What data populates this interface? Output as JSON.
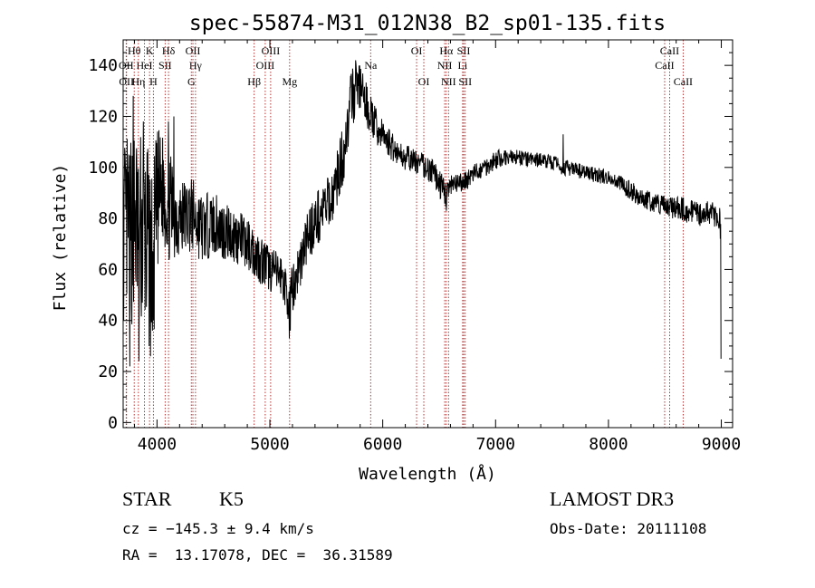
{
  "chart_data": {
    "type": "line",
    "title": "spec-55874-M31_012N38_B2_sp01-135.fits",
    "xlabel": "Wavelength (Å)",
    "ylabel": "Flux (relative)",
    "xlim": [
      3700,
      9100
    ],
    "ylim": [
      -2,
      150
    ],
    "xticks": [
      4000,
      5000,
      6000,
      7000,
      8000,
      9000
    ],
    "xtick_labels": [
      "4000",
      "5000",
      "6000",
      "7000",
      "8000",
      "9000"
    ],
    "yticks": [
      0,
      20,
      40,
      60,
      80,
      100,
      120,
      140
    ],
    "ytick_labels": [
      "0",
      "20",
      "40",
      "60",
      "80",
      "100",
      "120",
      "140"
    ],
    "color_line": "#000000",
    "color_marker": "#b22222",
    "spectrum_envelope": [
      {
        "x": 3710,
        "y": 75,
        "amp": 35
      },
      {
        "x": 3800,
        "y": 78,
        "amp": 40
      },
      {
        "x": 3900,
        "y": 72,
        "amp": 40
      },
      {
        "x": 3960,
        "y": 60,
        "amp": 38
      },
      {
        "x": 4000,
        "y": 85,
        "amp": 30
      },
      {
        "x": 4050,
        "y": 92,
        "amp": 22
      },
      {
        "x": 4100,
        "y": 85,
        "amp": 22
      },
      {
        "x": 4200,
        "y": 80,
        "amp": 16
      },
      {
        "x": 4300,
        "y": 82,
        "amp": 15
      },
      {
        "x": 4400,
        "y": 76,
        "amp": 14
      },
      {
        "x": 4500,
        "y": 78,
        "amp": 12
      },
      {
        "x": 4600,
        "y": 75,
        "amp": 12
      },
      {
        "x": 4700,
        "y": 73,
        "amp": 11
      },
      {
        "x": 4800,
        "y": 70,
        "amp": 10
      },
      {
        "x": 4900,
        "y": 65,
        "amp": 10
      },
      {
        "x": 5000,
        "y": 60,
        "amp": 9
      },
      {
        "x": 5100,
        "y": 58,
        "amp": 8
      },
      {
        "x": 5170,
        "y": 48,
        "amp": 9
      },
      {
        "x": 5250,
        "y": 60,
        "amp": 10
      },
      {
        "x": 5350,
        "y": 75,
        "amp": 11
      },
      {
        "x": 5450,
        "y": 82,
        "amp": 11
      },
      {
        "x": 5550,
        "y": 88,
        "amp": 10
      },
      {
        "x": 5650,
        "y": 105,
        "amp": 12
      },
      {
        "x": 5720,
        "y": 126,
        "amp": 12
      },
      {
        "x": 5780,
        "y": 133,
        "amp": 10
      },
      {
        "x": 5850,
        "y": 125,
        "amp": 9
      },
      {
        "x": 5950,
        "y": 115,
        "amp": 7
      },
      {
        "x": 6050,
        "y": 110,
        "amp": 6
      },
      {
        "x": 6150,
        "y": 105,
        "amp": 5
      },
      {
        "x": 6250,
        "y": 103,
        "amp": 5
      },
      {
        "x": 6350,
        "y": 101,
        "amp": 5
      },
      {
        "x": 6450,
        "y": 98,
        "amp": 5
      },
      {
        "x": 6550,
        "y": 90,
        "amp": 6
      },
      {
        "x": 6600,
        "y": 92,
        "amp": 5
      },
      {
        "x": 6700,
        "y": 94,
        "amp": 4
      },
      {
        "x": 6800,
        "y": 97,
        "amp": 4
      },
      {
        "x": 6900,
        "y": 100,
        "amp": 4
      },
      {
        "x": 7000,
        "y": 103,
        "amp": 4
      },
      {
        "x": 7100,
        "y": 104,
        "amp": 3
      },
      {
        "x": 7200,
        "y": 104,
        "amp": 3
      },
      {
        "x": 7300,
        "y": 103,
        "amp": 3
      },
      {
        "x": 7400,
        "y": 103,
        "amp": 3
      },
      {
        "x": 7500,
        "y": 102,
        "amp": 3
      },
      {
        "x": 7600,
        "y": 100,
        "amp": 3
      },
      {
        "x": 7700,
        "y": 99,
        "amp": 3
      },
      {
        "x": 7800,
        "y": 98,
        "amp": 3
      },
      {
        "x": 7900,
        "y": 97,
        "amp": 3
      },
      {
        "x": 8000,
        "y": 96,
        "amp": 3
      },
      {
        "x": 8100,
        "y": 94,
        "amp": 3
      },
      {
        "x": 8200,
        "y": 91,
        "amp": 4
      },
      {
        "x": 8300,
        "y": 88,
        "amp": 4
      },
      {
        "x": 8400,
        "y": 86,
        "amp": 4
      },
      {
        "x": 8500,
        "y": 85,
        "amp": 4
      },
      {
        "x": 8600,
        "y": 84,
        "amp": 5
      },
      {
        "x": 8700,
        "y": 83,
        "amp": 5
      },
      {
        "x": 8800,
        "y": 82,
        "amp": 5
      },
      {
        "x": 8900,
        "y": 82,
        "amp": 5
      },
      {
        "x": 8990,
        "y": 80,
        "amp": 5
      }
    ],
    "spectrum_features": [
      {
        "x": 3758,
        "y": 22
      },
      {
        "x": 3790,
        "y": 128
      },
      {
        "x": 3840,
        "y": 24
      },
      {
        "x": 3880,
        "y": 118
      },
      {
        "x": 3933,
        "y": 42
      },
      {
        "x": 3968,
        "y": 40
      },
      {
        "x": 4101,
        "y": 118
      },
      {
        "x": 4150,
        "y": 120
      },
      {
        "x": 5172,
        "y": 33
      },
      {
        "x": 5180,
        "y": 36
      },
      {
        "x": 5760,
        "y": 142
      },
      {
        "x": 5795,
        "y": 140
      },
      {
        "x": 6563,
        "y": 83
      },
      {
        "x": 7600,
        "y": 113
      },
      {
        "x": 8990,
        "y": 72
      },
      {
        "x": 8996,
        "y": 25
      }
    ],
    "lines": [
      {
        "label": "Hθ",
        "x": 3798,
        "row": 1
      },
      {
        "label": "K",
        "x": 3934,
        "row": 1
      },
      {
        "label": "Hδ",
        "x": 4102,
        "row": 1
      },
      {
        "label": "OII",
        "x": 4318,
        "row": 1
      },
      {
        "label": "OIII",
        "x": 5007,
        "row": 1
      },
      {
        "label": "OI",
        "x": 6300,
        "row": 1
      },
      {
        "label": "Hα",
        "x": 6563,
        "row": 1
      },
      {
        "label": "SII",
        "x": 6717,
        "row": 1
      },
      {
        "label": "CaII",
        "x": 8542,
        "row": 1
      },
      {
        "label": "OII",
        "x": 3727,
        "row": 2
      },
      {
        "label": "HeI",
        "x": 3889,
        "row": 2
      },
      {
        "label": "SII",
        "x": 4072,
        "row": 2
      },
      {
        "label": "Hγ",
        "x": 4341,
        "row": 2
      },
      {
        "label": "OIII",
        "x": 4959,
        "row": 2
      },
      {
        "label": "Na",
        "x": 5893,
        "row": 2
      },
      {
        "label": "NII",
        "x": 6549,
        "row": 2
      },
      {
        "label": "Li",
        "x": 6708,
        "row": 2
      },
      {
        "label": "CaII",
        "x": 8498,
        "row": 2
      },
      {
        "label": "OII",
        "x": 3730,
        "row": 3
      },
      {
        "label": "Hη",
        "x": 3835,
        "row": 3
      },
      {
        "label": "H",
        "x": 3968,
        "row": 3
      },
      {
        "label": "G",
        "x": 4304,
        "row": 3
      },
      {
        "label": "Hβ",
        "x": 4861,
        "row": 3
      },
      {
        "label": "Mg",
        "x": 5175,
        "row": 3
      },
      {
        "label": "OI",
        "x": 6364,
        "row": 3
      },
      {
        "label": "NII",
        "x": 6583,
        "row": 3
      },
      {
        "label": "SII",
        "x": 6731,
        "row": 3
      },
      {
        "label": "CaII",
        "x": 8662,
        "row": 3
      }
    ]
  },
  "info": {
    "object_type": "STAR",
    "subclass": "K5",
    "survey": "LAMOST DR3",
    "redshift": "cz = −145.3 ± 9.4 km/s",
    "obs_date": "Obs-Date: 20111108",
    "coords": "RA =  13.17078, DEC =  36.31589"
  }
}
